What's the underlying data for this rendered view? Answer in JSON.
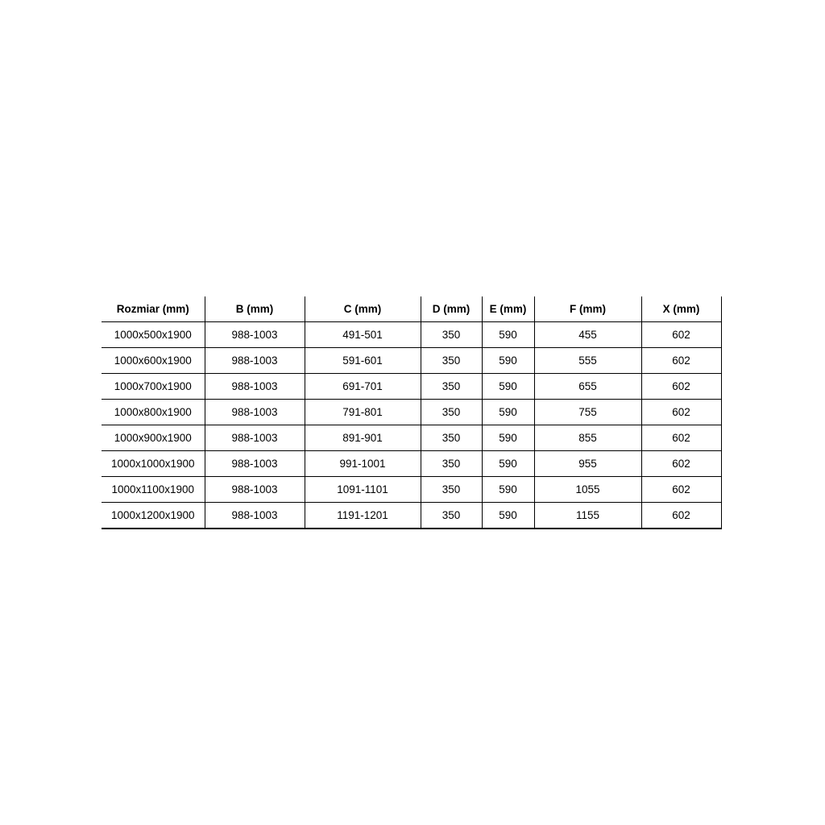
{
  "page": {
    "background_color": "#ffffff",
    "text_color": "#000000",
    "border_color": "#000000"
  },
  "table": {
    "headers": [
      "Rozmiar (mm)",
      "B (mm)",
      "C (mm)",
      "D (mm)",
      "E (mm)",
      "F (mm)",
      "X (mm)"
    ],
    "rows": [
      [
        "1000x500x1900",
        "988-1003",
        "491-501",
        "350",
        "590",
        "455",
        "602"
      ],
      [
        "1000x600x1900",
        "988-1003",
        "591-601",
        "350",
        "590",
        "555",
        "602"
      ],
      [
        "1000x700x1900",
        "988-1003",
        "691-701",
        "350",
        "590",
        "655",
        "602"
      ],
      [
        "1000x800x1900",
        "988-1003",
        "791-801",
        "350",
        "590",
        "755",
        "602"
      ],
      [
        "1000x900x1900",
        "988-1003",
        "891-901",
        "350",
        "590",
        "855",
        "602"
      ],
      [
        "1000x1000x1900",
        "988-1003",
        "991-1001",
        "350",
        "590",
        "955",
        "602"
      ],
      [
        "1000x1100x1900",
        "988-1003",
        "1091-1101",
        "350",
        "590",
        "1055",
        "602"
      ],
      [
        "1000x1200x1900",
        "988-1003",
        "1191-1201",
        "350",
        "590",
        "1155",
        "602"
      ]
    ]
  }
}
